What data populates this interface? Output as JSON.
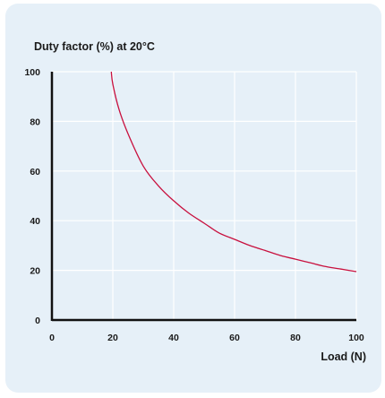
{
  "chart_data": {
    "type": "line",
    "title": "Duty factor (%) at 20°C",
    "xlabel": "Load (N)",
    "ylabel": "",
    "xlim": [
      0,
      100
    ],
    "ylim": [
      0,
      100
    ],
    "x_ticks": [
      0,
      20,
      40,
      60,
      80,
      100
    ],
    "y_ticks": [
      0,
      20,
      40,
      60,
      80,
      100
    ],
    "grid": true,
    "colors": {
      "curve": "#c8103e",
      "grid": "#ffffff",
      "axis": "#111111",
      "panel": "#e6f0f8"
    },
    "series": [
      {
        "x": [
          19.5,
          20,
          22,
          25,
          30,
          35,
          40,
          45,
          50,
          55,
          60,
          65,
          70,
          75,
          80,
          85,
          90,
          95,
          100
        ],
        "y": [
          100,
          95,
          85,
          75,
          62,
          54,
          48,
          43,
          39,
          35,
          32.5,
          30,
          28,
          26,
          24.5,
          23,
          21.5,
          20.5,
          19.5
        ]
      }
    ]
  }
}
